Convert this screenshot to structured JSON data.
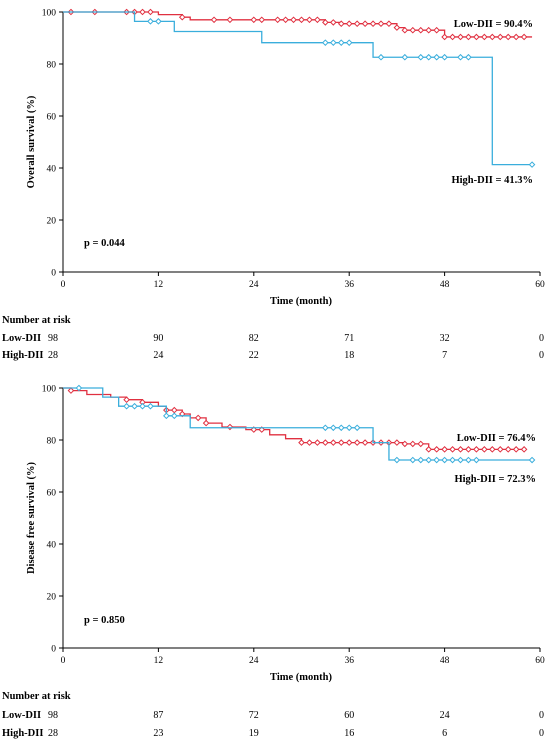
{
  "chart_data": [
    {
      "type": "line",
      "subtype": "kaplan-meier",
      "ylabel": "Overall survival (%)",
      "xlabel": "Time (month)",
      "xlim": [
        0,
        60
      ],
      "ylim": [
        0,
        100
      ],
      "x_ticks": [
        0,
        12,
        24,
        36,
        48,
        60
      ],
      "y_ticks": [
        0,
        20,
        40,
        60,
        80,
        100
      ],
      "grid": false,
      "p_value": "p = 0.044",
      "series": [
        {
          "name": "Low-DII",
          "color": "#e03040",
          "label": "Low-DII = 90.4%",
          "steps": [
            [
              0,
              100
            ],
            [
              12,
              99.0
            ],
            [
              15,
              98.0
            ],
            [
              16,
              97.0
            ],
            [
              33,
              96.0
            ],
            [
              35,
              95.5
            ],
            [
              42,
              94.0
            ],
            [
              43,
              93.0
            ],
            [
              48,
              90.4
            ],
            [
              59,
              90.4
            ]
          ],
          "censor": [
            1,
            4,
            8,
            9,
            10,
            11,
            15,
            19,
            21,
            24,
            25,
            27,
            28,
            29,
            30,
            31,
            32,
            33,
            34,
            35,
            36,
            37,
            38,
            39,
            40,
            41,
            42,
            43,
            44,
            45,
            46,
            47,
            48,
            49,
            50,
            51,
            52,
            53,
            54,
            55,
            56,
            57,
            58
          ]
        },
        {
          "name": "High-DII",
          "color": "#3aaedc",
          "label": "High-DII = 41.3%",
          "steps": [
            [
              0,
              100
            ],
            [
              9,
              96.4
            ],
            [
              14,
              92.5
            ],
            [
              25,
              88.2
            ],
            [
              39,
              82.6
            ],
            [
              54,
              41.3
            ],
            [
              59,
              41.3
            ]
          ],
          "censor": [
            11,
            12,
            33,
            34,
            35,
            36,
            40,
            43,
            45,
            46,
            47,
            48,
            50,
            51,
            59
          ]
        }
      ],
      "risk_table": {
        "title": "Number at risk",
        "times": [
          0,
          12,
          24,
          36,
          48,
          60
        ],
        "rows": [
          {
            "label": "Low-DII",
            "values": [
              "98",
              "90",
              "82",
              "71",
              "32",
              "0"
            ]
          },
          {
            "label": "High-DII",
            "values": [
              "28",
              "24",
              "22",
              "18",
              "7",
              "0"
            ]
          }
        ]
      }
    },
    {
      "type": "line",
      "subtype": "kaplan-meier",
      "ylabel": "Disease free survival (%)",
      "xlabel": "Time (month)",
      "xlim": [
        0,
        60
      ],
      "ylim": [
        0,
        100
      ],
      "x_ticks": [
        0,
        12,
        24,
        36,
        48,
        60
      ],
      "y_ticks": [
        0,
        20,
        40,
        60,
        80,
        100
      ],
      "grid": false,
      "p_value": "p = 0.850",
      "series": [
        {
          "name": "Low-DII",
          "color": "#e03040",
          "label": "Low-DII = 76.4%",
          "steps": [
            [
              0,
              100
            ],
            [
              1,
              99.0
            ],
            [
              3,
              97.5
            ],
            [
              6,
              96.5
            ],
            [
              8,
              95.5
            ],
            [
              10,
              94.5
            ],
            [
              12,
              93.0
            ],
            [
              13,
              91.5
            ],
            [
              15,
              90.0
            ],
            [
              16,
              88.5
            ],
            [
              18,
              86.5
            ],
            [
              20,
              85.0
            ],
            [
              23,
              84.0
            ],
            [
              26,
              82.0
            ],
            [
              28,
              80.5
            ],
            [
              30,
              79.0
            ],
            [
              43,
              78.5
            ],
            [
              46,
              76.4
            ],
            [
              58,
              76.4
            ]
          ],
          "censor": [
            1,
            8,
            10,
            13,
            14,
            15,
            17,
            18,
            21,
            24,
            25,
            30,
            31,
            32,
            33,
            34,
            35,
            36,
            37,
            38,
            39,
            40,
            41,
            42,
            43,
            44,
            45,
            46,
            47,
            48,
            49,
            50,
            51,
            52,
            53,
            54,
            55,
            56,
            57,
            58
          ]
        },
        {
          "name": "High-DII",
          "color": "#3aaedc",
          "label": "High-DII = 72.3%",
          "steps": [
            [
              0,
              100
            ],
            [
              5,
              96.5
            ],
            [
              7,
              93.0
            ],
            [
              13,
              89.3
            ],
            [
              16,
              84.7
            ],
            [
              39,
              79.0
            ],
            [
              41,
              72.3
            ],
            [
              59,
              72.3
            ]
          ],
          "censor": [
            2,
            8,
            9,
            10,
            11,
            13,
            14,
            33,
            34,
            35,
            36,
            37,
            42,
            44,
            45,
            46,
            47,
            48,
            49,
            50,
            51,
            52,
            59
          ]
        }
      ],
      "risk_table": {
        "title": "Number at risk",
        "times": [
          0,
          12,
          24,
          36,
          48,
          60
        ],
        "rows": [
          {
            "label": "Low-DII",
            "values": [
              "98",
              "87",
              "72",
              "60",
              "24",
              "0"
            ]
          },
          {
            "label": "High-DII",
            "values": [
              "28",
              "23",
              "19",
              "16",
              "6",
              "0"
            ]
          }
        ]
      }
    }
  ]
}
